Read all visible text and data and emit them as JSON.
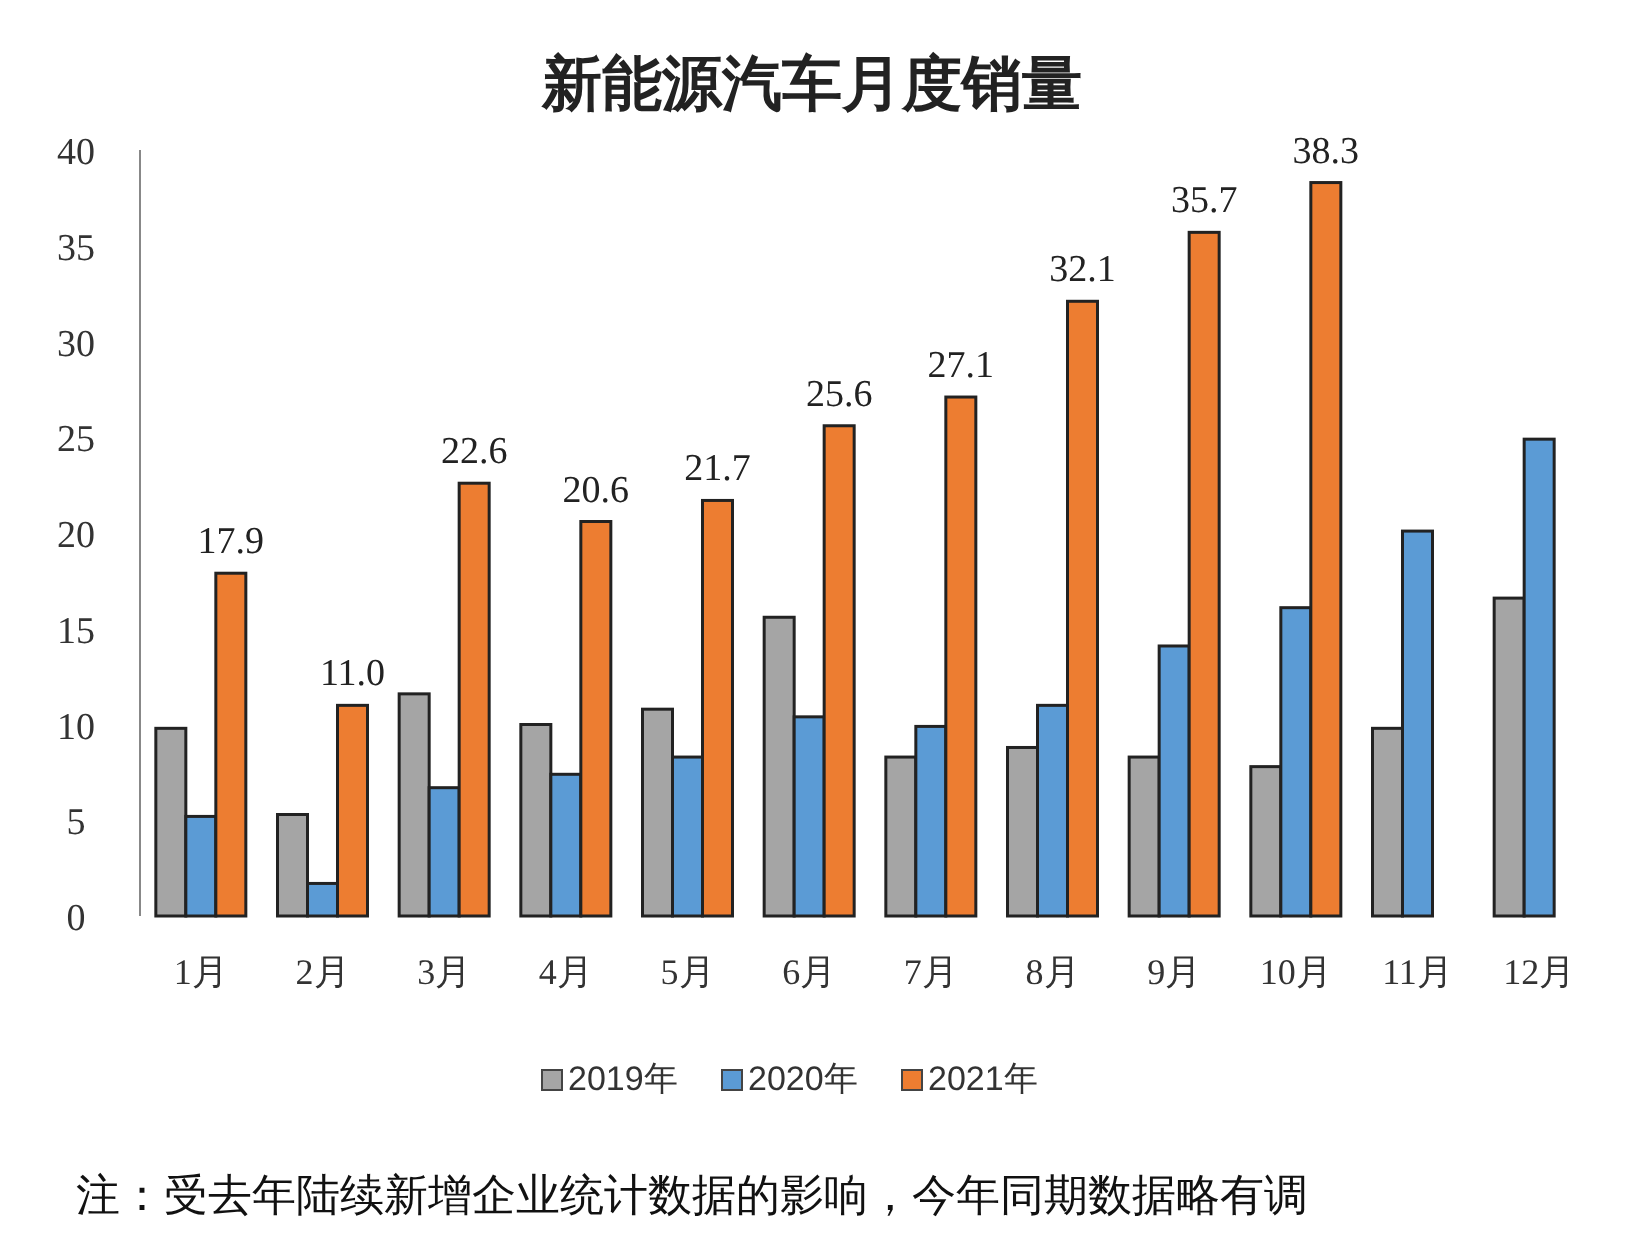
{
  "chart_data": {
    "type": "bar",
    "title": "新能源汽车月度销量",
    "categories": [
      "1月",
      "2月",
      "3月",
      "4月",
      "5月",
      "6月",
      "7月",
      "8月",
      "9月",
      "10月",
      "11月",
      "12月"
    ],
    "series": [
      {
        "name": "2019年",
        "color": "#a5a5a5",
        "values": [
          9.8,
          5.3,
          11.6,
          10.0,
          10.8,
          15.6,
          8.3,
          8.8,
          8.3,
          7.8,
          9.8,
          16.6
        ]
      },
      {
        "name": "2020年",
        "color": "#5b9bd5",
        "values": [
          5.2,
          1.7,
          6.7,
          7.4,
          8.3,
          10.4,
          9.9,
          11.0,
          14.1,
          16.1,
          20.1,
          24.9
        ]
      },
      {
        "name": "2021年",
        "color": "#ed7d31",
        "values": [
          17.9,
          11.0,
          22.6,
          20.6,
          21.7,
          25.6,
          27.1,
          32.1,
          35.7,
          38.3,
          null,
          null
        ],
        "value_labels": [
          "17.9",
          "11.0",
          "22.6",
          "20.6",
          "21.7",
          "25.6",
          "27.1",
          "32.1",
          "35.7",
          "38.3",
          null,
          null
        ]
      }
    ],
    "ylim": [
      0,
      40
    ],
    "yticks": [
      0,
      5,
      10,
      15,
      20,
      25,
      30,
      35,
      40
    ],
    "grid": false,
    "legend": "bottom",
    "annotations": [
      "注：受去年陆续新增企业统计数据的影响，今年同期数据略有调"
    ]
  }
}
